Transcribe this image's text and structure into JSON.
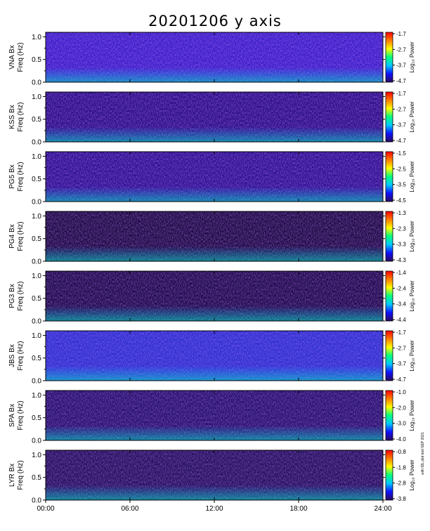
{
  "chart_data": {
    "type": "heatmap",
    "title": "20201206 y axis",
    "xlabel": "",
    "x_ticks": [
      "00:00",
      "06:00",
      "12:00",
      "18:00",
      "24:00"
    ],
    "xlim": [
      0,
      24
    ],
    "y_ticks": [
      "0.0",
      "0.5",
      "1.0"
    ],
    "ylim": [
      0,
      1.1
    ],
    "colorbar_label": "Log₁₀ Power",
    "colormap": [
      "#2a0a5a",
      "#1010ff",
      "#00c8ff",
      "#00ff80",
      "#ffff00",
      "#ff8000",
      "#ff0000"
    ],
    "panels": [
      {
        "station": "VNA Bx",
        "ylabel": "Freq (Hz)",
        "cbar_ticks": [
          "-1.7",
          "-2.7",
          "-3.7",
          "-4.7"
        ]
      },
      {
        "station": "KSS Bx",
        "ylabel": "Freq (Hz)",
        "cbar_ticks": [
          "-1.7",
          "-2.7",
          "-3.7",
          "-4.7"
        ]
      },
      {
        "station": "PG5 Bx",
        "ylabel": "Freq (Hz)",
        "cbar_ticks": [
          "-1.5",
          "-2.5",
          "-3.5",
          "-4.5"
        ]
      },
      {
        "station": "PG4 Bx",
        "ylabel": "Freq (Hz)",
        "cbar_ticks": [
          "-1.3",
          "-2.3",
          "-3.3",
          "-4.3"
        ]
      },
      {
        "station": "PG3 Bx",
        "ylabel": "Freq (Hz)",
        "cbar_ticks": [
          "-1.4",
          "-2.4",
          "-3.4",
          "-4.4"
        ]
      },
      {
        "station": "JBS Bx",
        "ylabel": "Freq (Hz)",
        "cbar_ticks": [
          "-1.7",
          "-2.7",
          "-3.7",
          "-4.7"
        ]
      },
      {
        "station": "SPA Bx",
        "ylabel": "Freq (Hz)",
        "cbar_ticks": [
          "-1.0",
          "-2.0",
          "-3.0",
          "-4.0"
        ]
      },
      {
        "station": "LYR Bx",
        "ylabel": "Freq (Hz)",
        "cbar_ticks": [
          "-0.8",
          "-1.8",
          "-2.8",
          "-3.8"
        ]
      }
    ]
  },
  "credit_text": "with IDL plot tool SEP 2021"
}
